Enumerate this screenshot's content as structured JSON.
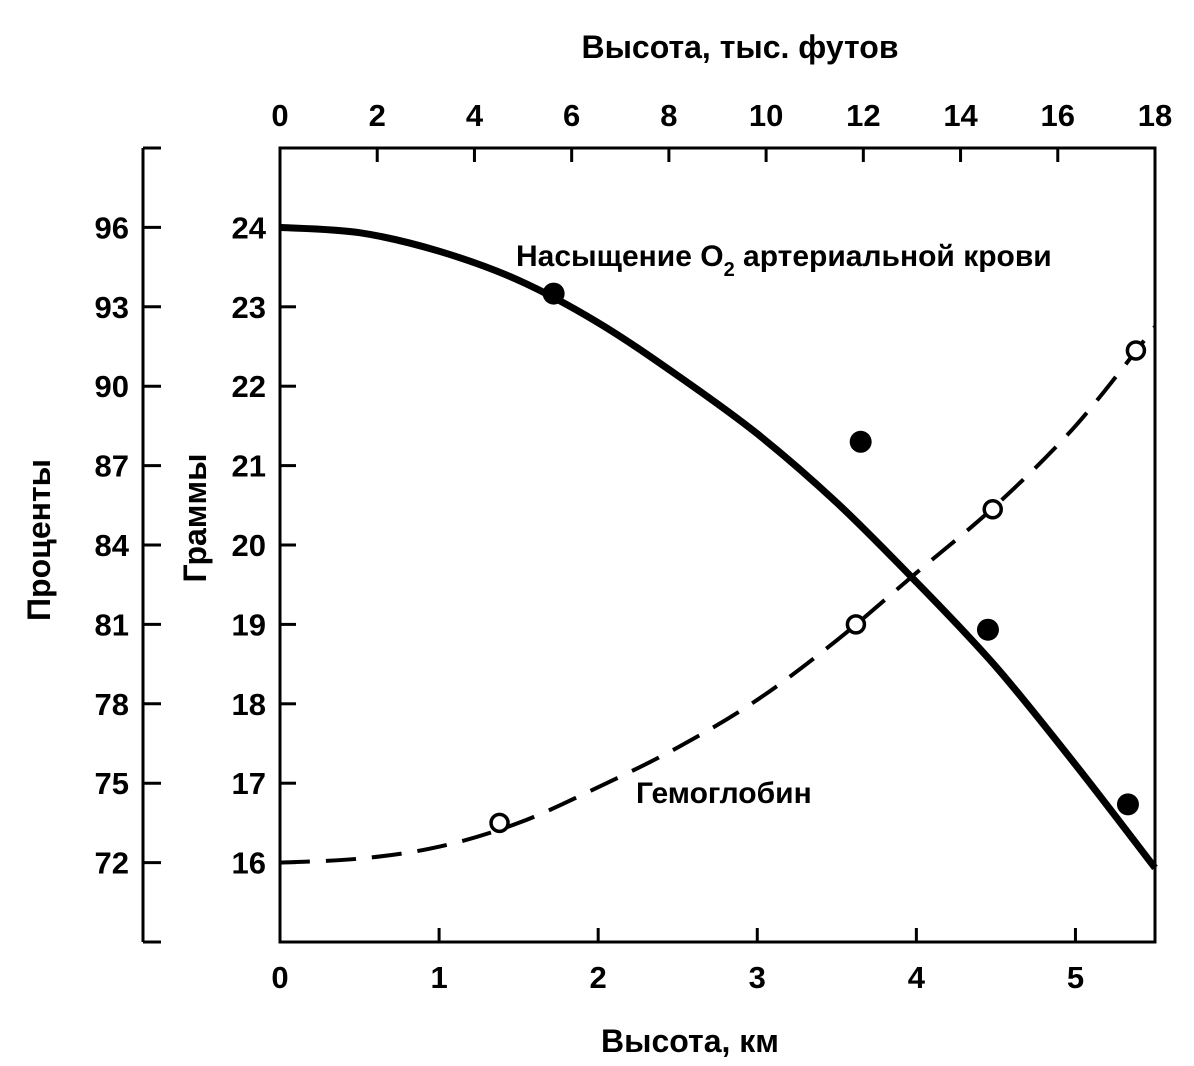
{
  "chart_data": {
    "type": "line",
    "title": "",
    "xlabel_bottom": "Высота, км",
    "xlabel_top": "Высота, тыс. футов",
    "ylabel_percent": "Проценты",
    "ylabel_grams": "Граммы",
    "x_bottom": {
      "range": [
        0,
        5.5
      ],
      "ticks": [
        "0",
        "1",
        "2",
        "3",
        "4",
        "5"
      ],
      "tick_values": [
        0,
        1,
        2,
        3,
        4,
        5
      ]
    },
    "x_top": {
      "range": [
        0,
        18
      ],
      "ticks": [
        "0",
        "2",
        "4",
        "6",
        "8",
        "10",
        "12",
        "14",
        "16",
        "18"
      ],
      "tick_values": [
        0,
        2,
        4,
        6,
        8,
        10,
        12,
        14,
        16,
        18
      ]
    },
    "y_percent": {
      "range": [
        69,
        99
      ],
      "ticks": [
        "72",
        "75",
        "78",
        "81",
        "84",
        "87",
        "90",
        "93",
        "96"
      ],
      "tick_values": [
        72,
        75,
        78,
        81,
        84,
        87,
        90,
        93,
        96
      ]
    },
    "y_grams": {
      "range": [
        15,
        25
      ],
      "ticks": [
        "16",
        "17",
        "18",
        "19",
        "20",
        "21",
        "22",
        "23",
        "24"
      ],
      "tick_values": [
        16,
        17,
        18,
        19,
        20,
        21,
        22,
        23,
        24
      ]
    },
    "series": [
      {
        "name": "Насыщение O₂ артериальной крови",
        "label_main": "Насыщение O",
        "label_sub": "2",
        "label_rest": " артериальной крови",
        "axis": "percent",
        "line_style": "solid",
        "marker": "filled-circle",
        "curve": {
          "x": [
            0,
            0.5,
            1.0,
            1.5,
            2.0,
            2.5,
            3.0,
            3.5,
            4.0,
            4.5,
            5.0,
            5.5
          ],
          "y": [
            96.0,
            95.8,
            95.1,
            94.0,
            92.4,
            90.4,
            88.2,
            85.6,
            82.6,
            79.4,
            75.7,
            71.8
          ]
        },
        "points": {
          "x": [
            1.72,
            3.65,
            4.45,
            5.33
          ],
          "y": [
            93.5,
            87.9,
            80.8,
            74.2
          ]
        }
      },
      {
        "name": "Гемоглобин",
        "axis": "grams",
        "line_style": "dashed",
        "marker": "open-circle",
        "curve": {
          "x": [
            0,
            0.5,
            1.0,
            1.5,
            2.0,
            2.5,
            3.0,
            3.5,
            4.0,
            4.5,
            5.0,
            5.5
          ],
          "y": [
            16.0,
            16.05,
            16.2,
            16.5,
            16.95,
            17.45,
            18.05,
            18.8,
            19.65,
            20.5,
            21.5,
            22.75
          ]
        },
        "points": {
          "x": [
            1.38,
            3.62,
            4.48,
            5.38
          ],
          "y": [
            16.5,
            19.0,
            20.45,
            22.45
          ]
        }
      }
    ]
  }
}
